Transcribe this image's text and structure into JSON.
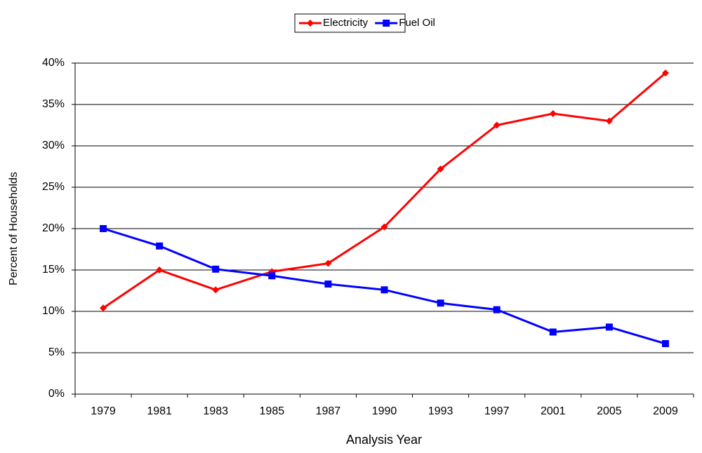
{
  "chart_data": {
    "type": "line",
    "x_label": "Analysis Year",
    "y_label": "Percent of Households",
    "categories": [
      "1979",
      "1981",
      "1983",
      "1985",
      "1987",
      "1990",
      "1993",
      "1997",
      "2001",
      "2005",
      "2009"
    ],
    "series": [
      {
        "name": "Electricity",
        "color": "#ff0000",
        "marker": "diamond",
        "values": [
          10.4,
          15.0,
          12.6,
          14.8,
          15.8,
          20.2,
          27.2,
          32.5,
          33.9,
          33.0,
          38.8
        ]
      },
      {
        "name": "Fuel Oil",
        "color": "#0000ff",
        "marker": "square",
        "values": [
          20.0,
          17.9,
          15.1,
          14.3,
          13.3,
          12.6,
          11.0,
          10.2,
          7.5,
          8.1,
          6.1
        ]
      }
    ],
    "ylim": [
      0,
      40
    ],
    "yticks": [
      {
        "value": 0,
        "label": "0%"
      },
      {
        "value": 5,
        "label": "5%"
      },
      {
        "value": 10,
        "label": "10%"
      },
      {
        "value": 15,
        "label": "15%"
      },
      {
        "value": 20,
        "label": "20%"
      },
      {
        "value": 25,
        "label": "25%"
      },
      {
        "value": 30,
        "label": "30%"
      },
      {
        "value": 35,
        "label": "35%"
      },
      {
        "value": 40,
        "label": "40%"
      }
    ],
    "grid": true,
    "legend": "top"
  }
}
